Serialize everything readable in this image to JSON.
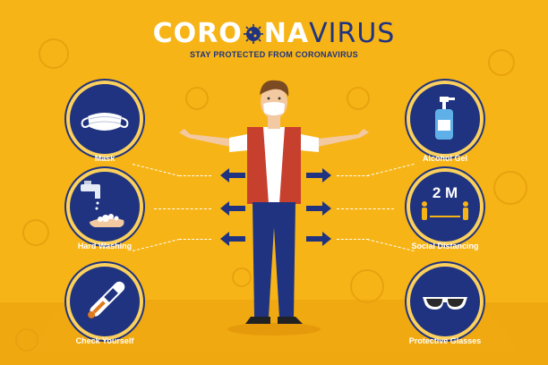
{
  "header": {
    "title_part1": "CORO",
    "title_part2": "NA",
    "title_part3": "VIRUS",
    "subtitle": "STAY PROTECTED FROM CORONAVIRUS"
  },
  "left_items": [
    {
      "label": "Mask",
      "icon": "mask-icon"
    },
    {
      "label": "Hard Washing",
      "icon": "hand-washing-icon"
    },
    {
      "label": "Check Yourself",
      "icon": "thermometer-icon"
    }
  ],
  "right_items": [
    {
      "label": "Alcohol Gel",
      "icon": "alcohol-gel-icon"
    },
    {
      "label": "Social Distancing",
      "icon": "social-distancing-icon",
      "badge": "2 M"
    },
    {
      "label": "Protective Glasses",
      "icon": "glasses-icon"
    }
  ],
  "colors": {
    "background": "#f7b416",
    "navy": "#1f3380",
    "white": "#ffffff",
    "vest": "#c7402e"
  }
}
